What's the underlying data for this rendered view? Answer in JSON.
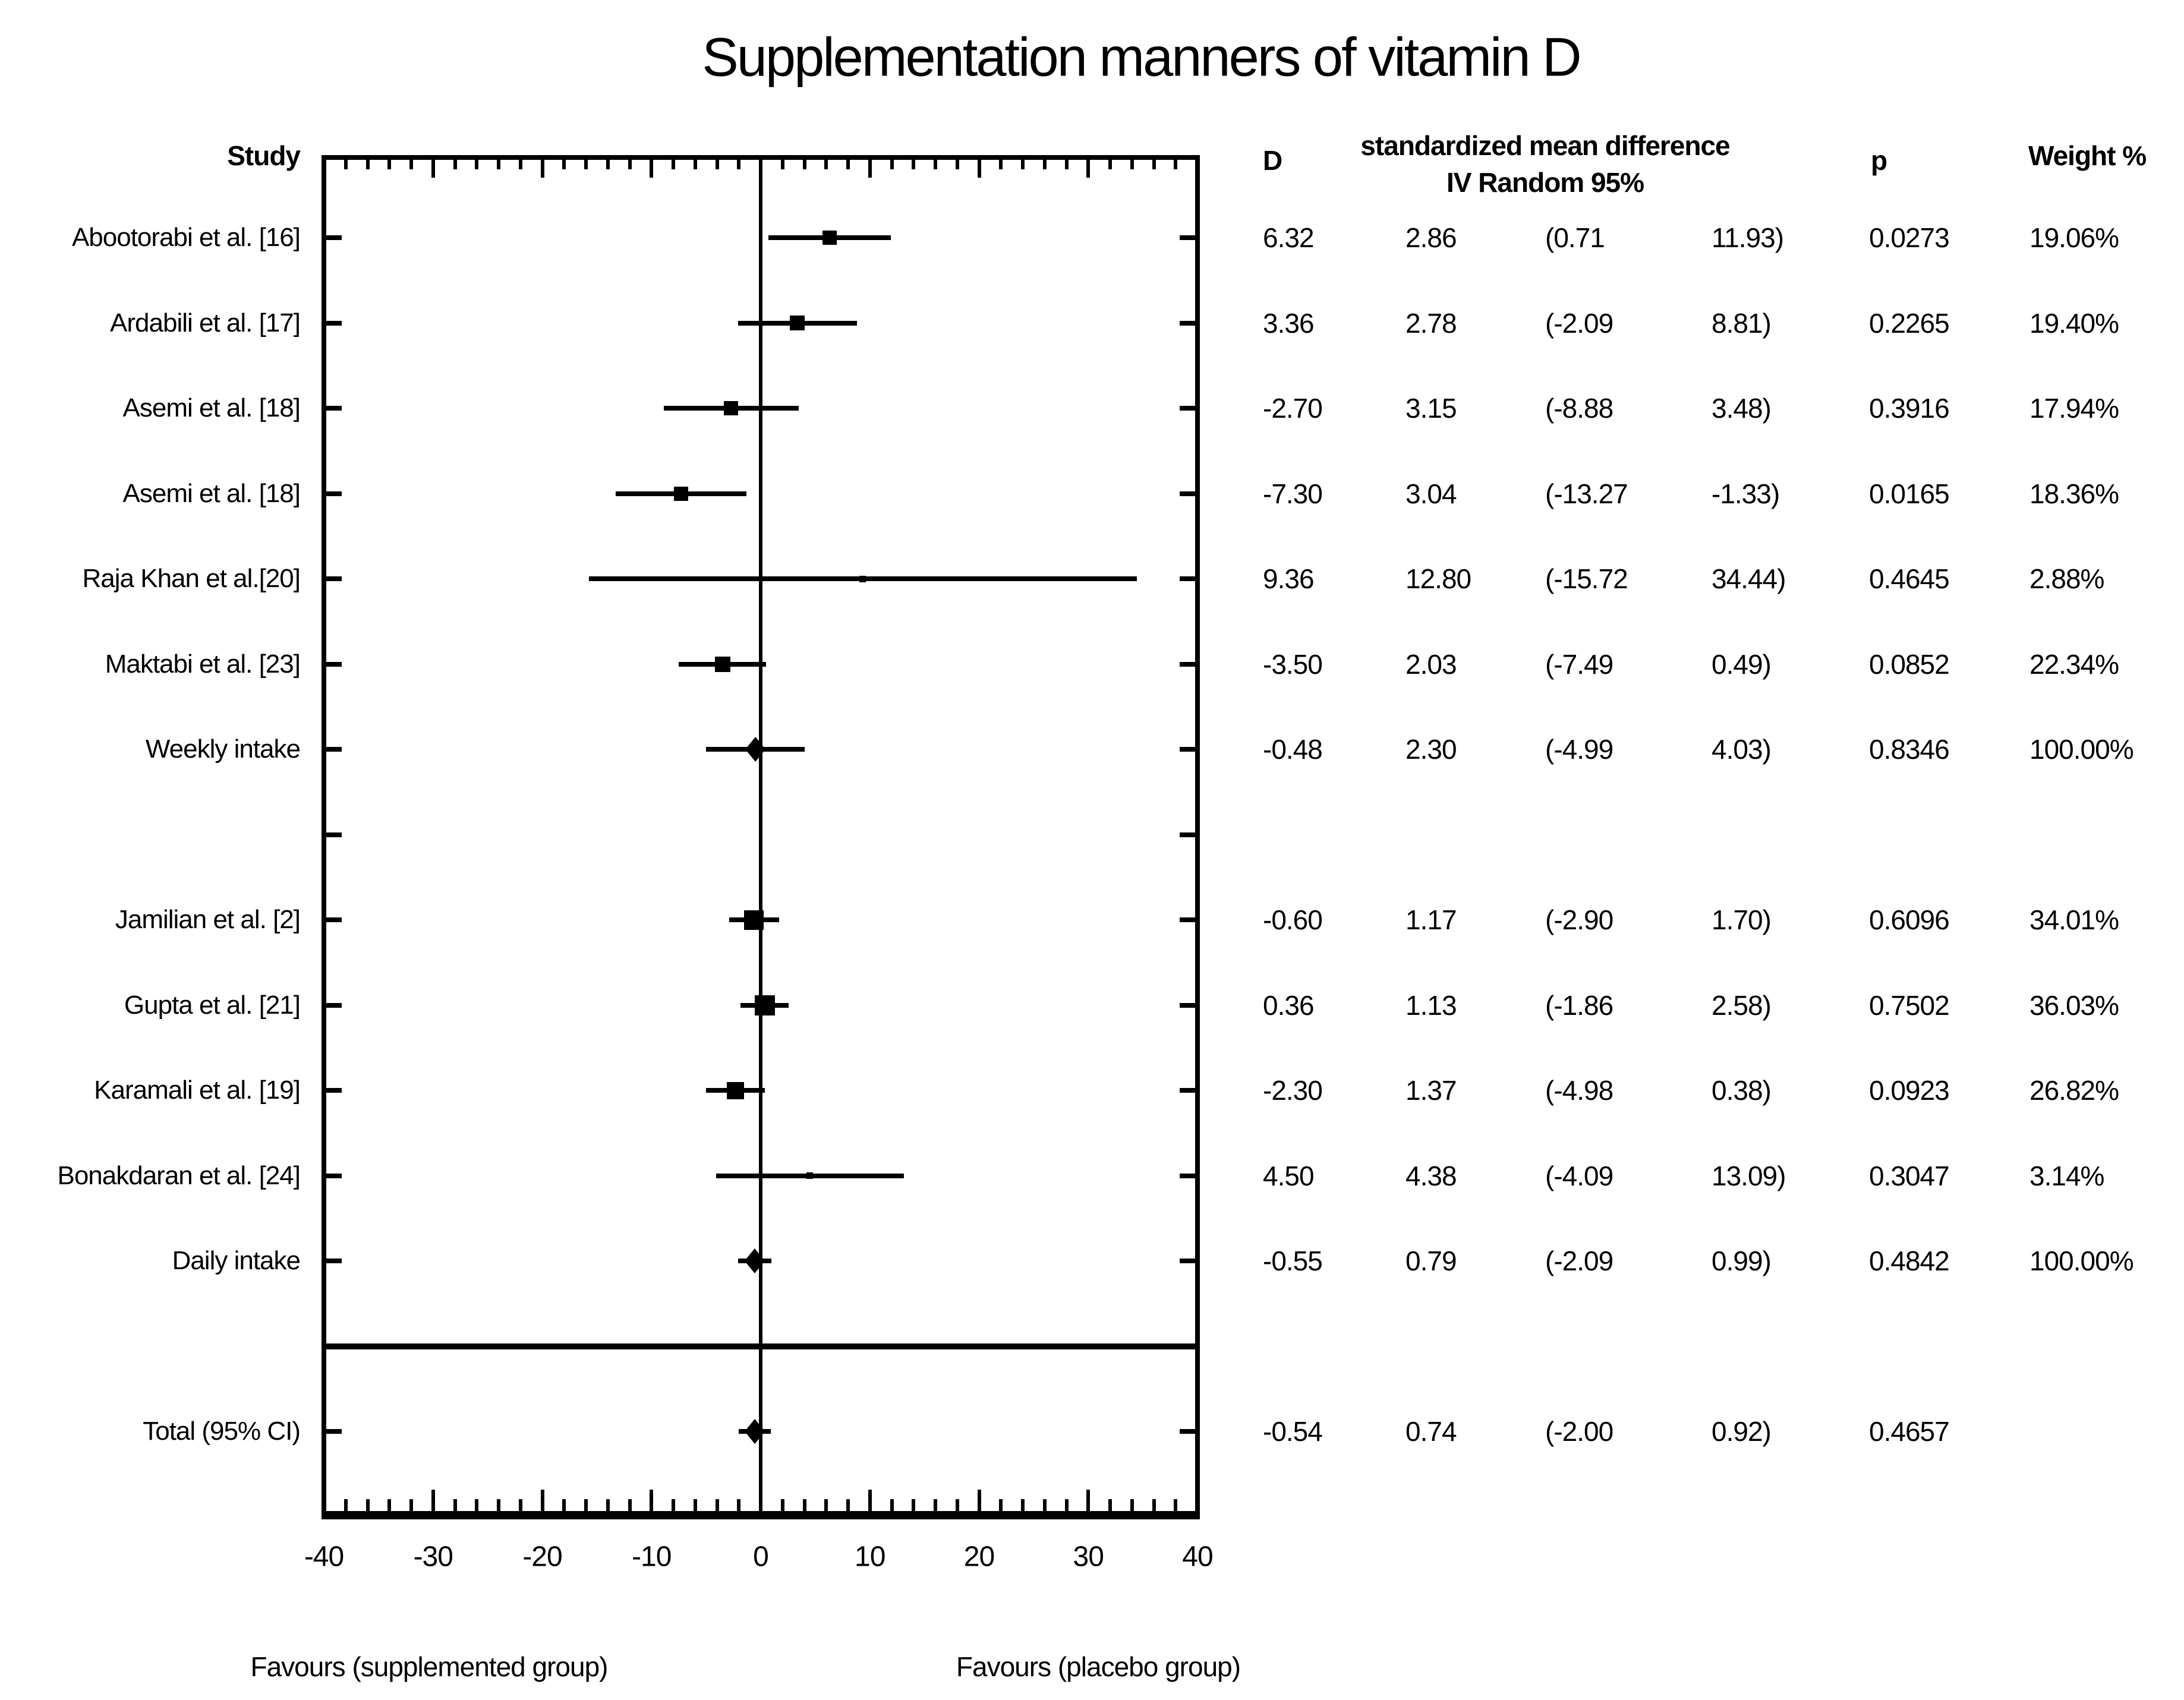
{
  "title": "Supplementation manners of vitamin D",
  "headers": {
    "study": "Study",
    "d": "D",
    "smd_line1": "standardized mean difference",
    "smd_line2": "IV Random 95%",
    "p": "p",
    "weight": "Weight %"
  },
  "footer": {
    "left": "Favours (supplemented group)",
    "right": "Favours (placebo group)"
  },
  "chart_data": {
    "type": "forest",
    "title": "Supplementation manners of vitamin D",
    "xlim": [
      -40,
      40
    ],
    "x_major_step": 10,
    "x_minor_step": 2,
    "x_tick_values": [
      -40,
      -30,
      -20,
      -10,
      0,
      10,
      20,
      30,
      40
    ],
    "x_tick_labels": [
      "-40",
      "-30",
      "-20",
      "-10",
      "0",
      "10",
      "20",
      "30",
      "40"
    ],
    "zero_line": 0,
    "legend_left": "Favours (supplemented group)",
    "legend_right": "Favours (placebo group)",
    "rows": [
      {
        "type": "study",
        "marker": "square",
        "study": "Abootorabi et al. [16]",
        "d": 6.32,
        "se": 2.86,
        "ci": [
          0.71,
          11.93
        ],
        "p": 0.0273,
        "weight_pct": 19.06,
        "text": {
          "d": "6.32",
          "se": "2.86",
          "ci_lo": "(0.71",
          "ci_hi": "11.93)",
          "p": "0.0273",
          "weight": "19.06%"
        }
      },
      {
        "type": "study",
        "marker": "square",
        "study": "Ardabili et al. [17]",
        "d": 3.36,
        "se": 2.78,
        "ci": [
          -2.09,
          8.81
        ],
        "p": 0.2265,
        "weight_pct": 19.4,
        "text": {
          "d": "3.36",
          "se": "2.78",
          "ci_lo": "(-2.09",
          "ci_hi": "8.81)",
          "p": "0.2265",
          "weight": "19.40%"
        }
      },
      {
        "type": "study",
        "marker": "square",
        "study": "Asemi et al. [18]",
        "d": -2.7,
        "se": 3.15,
        "ci": [
          -8.88,
          3.48
        ],
        "p": 0.3916,
        "weight_pct": 17.94,
        "text": {
          "d": "-2.70",
          "se": "3.15",
          "ci_lo": "(-8.88",
          "ci_hi": "3.48)",
          "p": "0.3916",
          "weight": "17.94%"
        }
      },
      {
        "type": "study",
        "marker": "square",
        "study": "Asemi et al. [18]",
        "d": -7.3,
        "se": 3.04,
        "ci": [
          -13.27,
          -1.33
        ],
        "p": 0.0165,
        "weight_pct": 18.36,
        "text": {
          "d": "-7.30",
          "se": "3.04",
          "ci_lo": "(-13.27",
          "ci_hi": "-1.33)",
          "p": "0.0165",
          "weight": "18.36%"
        }
      },
      {
        "type": "study",
        "marker": "square",
        "study": "Raja Khan et al.[20]",
        "d": 9.36,
        "se": 12.8,
        "ci": [
          -15.72,
          34.44
        ],
        "p": 0.4645,
        "weight_pct": 2.88,
        "text": {
          "d": "9.36",
          "se": "12.80",
          "ci_lo": "(-15.72",
          "ci_hi": "34.44)",
          "p": "0.4645",
          "weight": "2.88%"
        }
      },
      {
        "type": "study",
        "marker": "square",
        "study": "Maktabi et al. [23]",
        "d": -3.5,
        "se": 2.03,
        "ci": [
          -7.49,
          0.49
        ],
        "p": 0.0852,
        "weight_pct": 22.34,
        "text": {
          "d": "-3.50",
          "se": "2.03",
          "ci_lo": "(-7.49",
          "ci_hi": "0.49)",
          "p": "0.0852",
          "weight": "22.34%"
        }
      },
      {
        "type": "summary",
        "marker": "diamond",
        "study": "Weekly intake",
        "d": -0.48,
        "se": 2.3,
        "ci": [
          -4.99,
          4.03
        ],
        "p": 0.8346,
        "weight_pct": 100.0,
        "text": {
          "d": "-0.48",
          "se": "2.30",
          "ci_lo": "(-4.99",
          "ci_hi": "4.03)",
          "p": "0.8346",
          "weight": "100.00%"
        }
      },
      {
        "type": "blank"
      },
      {
        "type": "study",
        "marker": "square",
        "study": "Jamilian et al. [2]",
        "d": -0.6,
        "se": 1.17,
        "ci": [
          -2.9,
          1.7
        ],
        "p": 0.6096,
        "weight_pct": 34.01,
        "text": {
          "d": "-0.60",
          "se": "1.17",
          "ci_lo": "(-2.90",
          "ci_hi": "1.70)",
          "p": "0.6096",
          "weight": "34.01%"
        }
      },
      {
        "type": "study",
        "marker": "square",
        "study": "Gupta et al. [21]",
        "d": 0.36,
        "se": 1.13,
        "ci": [
          -1.86,
          2.58
        ],
        "p": 0.7502,
        "weight_pct": 36.03,
        "text": {
          "d": "0.36",
          "se": "1.13",
          "ci_lo": "(-1.86",
          "ci_hi": "2.58)",
          "p": "0.7502",
          "weight": "36.03%"
        }
      },
      {
        "type": "study",
        "marker": "square",
        "study": "Karamali et al. [19]",
        "d": -2.3,
        "se": 1.37,
        "ci": [
          -4.98,
          0.38
        ],
        "p": 0.0923,
        "weight_pct": 26.82,
        "text": {
          "d": "-2.30",
          "se": "1.37",
          "ci_lo": "(-4.98",
          "ci_hi": "0.38)",
          "p": "0.0923",
          "weight": "26.82%"
        }
      },
      {
        "type": "study",
        "marker": "square",
        "study": "Bonakdaran et al. [24]",
        "d": 4.5,
        "se": 4.38,
        "ci": [
          -4.09,
          13.09
        ],
        "p": 0.3047,
        "weight_pct": 3.14,
        "text": {
          "d": "4.50",
          "se": "4.38",
          "ci_lo": "(-4.09",
          "ci_hi": "13.09)",
          "p": "0.3047",
          "weight": "3.14%"
        }
      },
      {
        "type": "summary",
        "marker": "diamond",
        "study": "Daily intake",
        "d": -0.55,
        "se": 0.79,
        "ci": [
          -2.09,
          0.99
        ],
        "p": 0.4842,
        "weight_pct": 100.0,
        "text": {
          "d": "-0.55",
          "se": "0.79",
          "ci_lo": "(-2.09",
          "ci_hi": "0.99)",
          "p": "0.4842",
          "weight": "100.00%"
        }
      },
      {
        "type": "separator"
      },
      {
        "type": "total",
        "marker": "diamond",
        "study": "Total (95% CI)",
        "d": -0.54,
        "se": 0.74,
        "ci": [
          -2.0,
          0.92
        ],
        "p": 0.4657,
        "weight_pct": null,
        "text": {
          "d": "-0.54",
          "se": "0.74",
          "ci_lo": "(-2.00",
          "ci_hi": "0.92)",
          "p": "0.4657",
          "weight": ""
        }
      }
    ],
    "colors": {
      "foreground": "#000000",
      "background": "#ffffff"
    }
  }
}
